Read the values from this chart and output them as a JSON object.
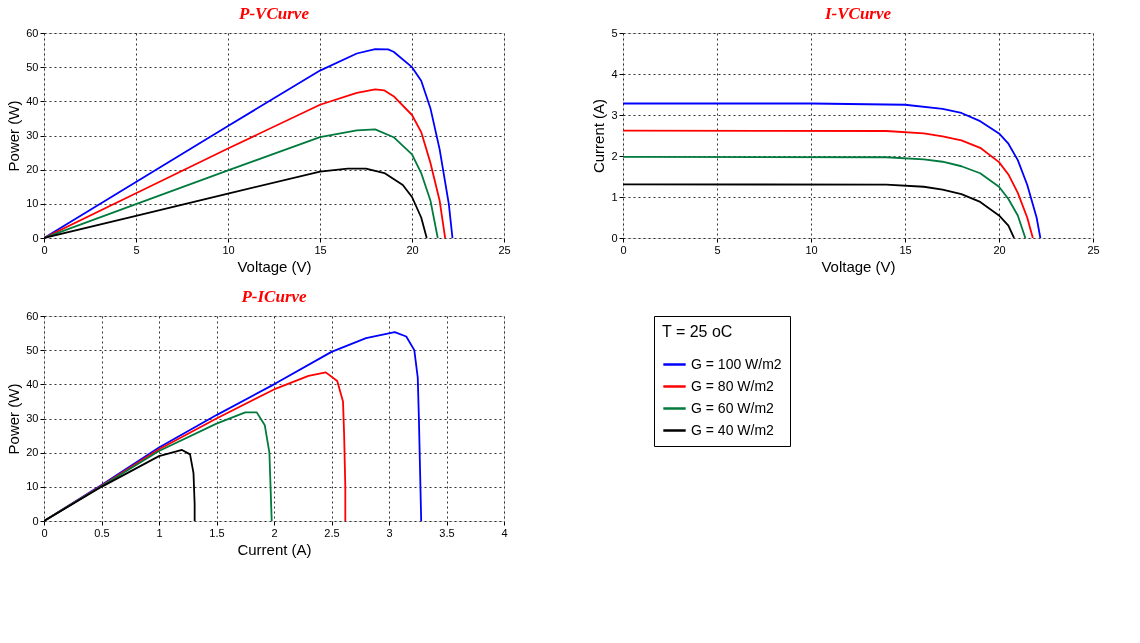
{
  "chart_data": [
    {
      "type": "line",
      "title": "P-VCurve",
      "xlabel": "Voltage (V)",
      "ylabel": "Power (W)",
      "xlim": [
        0,
        25
      ],
      "xticks": [
        0,
        5,
        10,
        15,
        20,
        25
      ],
      "ylim": [
        0,
        60
      ],
      "yticks": [
        0,
        10,
        20,
        30,
        40,
        50,
        60
      ],
      "grid": true,
      "legend": false,
      "line_style": "solid",
      "marker": "none",
      "series": [
        {
          "color": "#0000ff",
          "x": [
            0,
            5,
            10,
            15,
            17,
            18,
            18.7,
            19,
            20,
            20.5,
            21,
            21.5,
            22,
            22.2
          ],
          "values": [
            0,
            16.4,
            32.8,
            49,
            54,
            55.3,
            55.2,
            54.5,
            50,
            46,
            38,
            26,
            10,
            0
          ]
        },
        {
          "color": "#ff0000",
          "x": [
            0,
            5,
            10,
            15,
            17,
            18,
            18.5,
            19,
            20,
            20.5,
            21,
            21.5,
            21.8
          ],
          "values": [
            0,
            13.1,
            26.2,
            39,
            42.5,
            43.5,
            43.2,
            41.5,
            36,
            31,
            22,
            11,
            0
          ]
        },
        {
          "color": "#007a3d",
          "x": [
            0,
            5,
            10,
            15,
            17,
            18,
            19,
            20,
            20.5,
            21,
            21.4
          ],
          "values": [
            0,
            9.9,
            19.8,
            29.5,
            31.5,
            31.8,
            29.5,
            24.5,
            19,
            11,
            0
          ]
        },
        {
          "color": "#000000",
          "x": [
            0,
            5,
            10,
            15,
            16.5,
            17.5,
            18.5,
            19.5,
            20,
            20.5,
            20.8
          ],
          "values": [
            0,
            6.5,
            13,
            19.4,
            20.3,
            20.3,
            19,
            15.5,
            12,
            6,
            0
          ]
        }
      ]
    },
    {
      "type": "line",
      "title": "I-VCurve",
      "xlabel": "Voltage (V)",
      "ylabel": "Current (A)",
      "xlim": [
        0,
        25
      ],
      "xticks": [
        0,
        5,
        10,
        15,
        20,
        25
      ],
      "ylim": [
        0,
        5
      ],
      "yticks": [
        0,
        1,
        2,
        3,
        4,
        5
      ],
      "grid": true,
      "legend": false,
      "line_style": "solid",
      "marker": "none",
      "series": [
        {
          "color": "#0000ff",
          "x": [
            0,
            10,
            15,
            17,
            18,
            19,
            20,
            20.5,
            21,
            21.5,
            22,
            22.2
          ],
          "values": [
            3.28,
            3.28,
            3.25,
            3.15,
            3.05,
            2.85,
            2.55,
            2.3,
            1.9,
            1.3,
            0.5,
            0
          ]
        },
        {
          "color": "#ff0000",
          "x": [
            0,
            14,
            16,
            17,
            18,
            19,
            20,
            20.5,
            21,
            21.5,
            21.8
          ],
          "values": [
            2.62,
            2.61,
            2.55,
            2.48,
            2.38,
            2.2,
            1.85,
            1.55,
            1.1,
            0.5,
            0
          ]
        },
        {
          "color": "#007a3d",
          "x": [
            0,
            14,
            16,
            17,
            18,
            19,
            20,
            20.5,
            21,
            21.4
          ],
          "values": [
            1.98,
            1.97,
            1.92,
            1.86,
            1.75,
            1.58,
            1.25,
            0.95,
            0.55,
            0
          ]
        },
        {
          "color": "#000000",
          "x": [
            0,
            14,
            16,
            17,
            18,
            19,
            20,
            20.5,
            20.8
          ],
          "values": [
            1.31,
            1.3,
            1.25,
            1.18,
            1.07,
            0.88,
            0.55,
            0.3,
            0
          ]
        }
      ]
    },
    {
      "type": "line",
      "title": "P-ICurve",
      "xlabel": "Current (A)",
      "ylabel": "Power (W)",
      "xlim": [
        0,
        4
      ],
      "xticks": [
        0,
        0.5,
        1,
        1.5,
        2,
        2.5,
        3,
        3.5,
        4
      ],
      "ylim": [
        0,
        60
      ],
      "yticks": [
        0,
        10,
        20,
        30,
        40,
        50,
        60
      ],
      "grid": true,
      "legend": "right",
      "legend_title": "T = 25 oC",
      "line_style": "solid",
      "marker": "none",
      "series": [
        {
          "name": "G = 100 W/m2",
          "color": "#0000ff",
          "x": [
            0,
            0.5,
            1,
            1.5,
            2,
            2.5,
            2.8,
            3.05,
            3.15,
            3.22,
            3.25,
            3.26,
            3.27,
            3.28
          ],
          "values": [
            0,
            10.5,
            21.5,
            31,
            40,
            49.5,
            53.5,
            55.3,
            54,
            50,
            42,
            30,
            15,
            0
          ]
        },
        {
          "name": "G = 80 W/m2",
          "color": "#ff0000",
          "x": [
            0,
            0.5,
            1,
            1.5,
            2,
            2.3,
            2.45,
            2.55,
            2.6,
            2.61,
            2.62,
            2.62
          ],
          "values": [
            0,
            10.3,
            21,
            30,
            38.5,
            42.5,
            43.5,
            41,
            35,
            25,
            10,
            0
          ]
        },
        {
          "name": "G = 60 W/m2",
          "color": "#007a3d",
          "x": [
            0,
            0.5,
            1,
            1.5,
            1.75,
            1.85,
            1.92,
            1.96,
            1.97,
            1.98
          ],
          "values": [
            0,
            10.2,
            20.5,
            28.5,
            31.8,
            31.8,
            28,
            20,
            10,
            0
          ]
        },
        {
          "name": "G = 40 W/m2",
          "color": "#000000",
          "x": [
            0,
            0.5,
            1,
            1.2,
            1.27,
            1.3,
            1.31,
            1.31
          ],
          "values": [
            0,
            10,
            19,
            20.8,
            19.5,
            14,
            5,
            0
          ]
        }
      ]
    }
  ]
}
